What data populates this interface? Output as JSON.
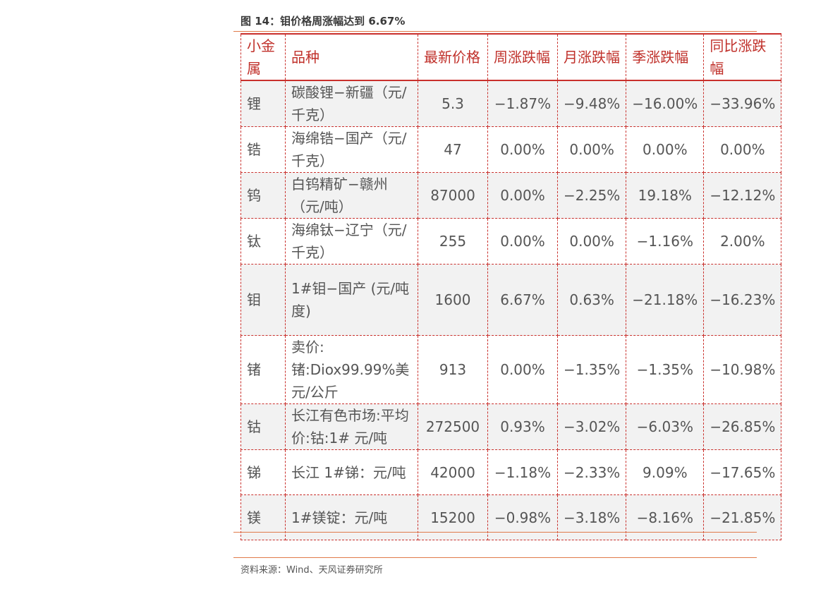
{
  "title": "图 14：钼价格周涨幅达到 6.67%",
  "headers": [
    "小金属",
    "品种",
    "最新价格",
    "周涨跌幅",
    "月涨跌幅",
    "季涨跌幅",
    "同比涨跌幅"
  ],
  "rows": [
    {
      "metal": "锂",
      "product": "碳酸锂−新疆（元/千克）",
      "price": "5.3",
      "week": "−1.87%",
      "month": "−9.48%",
      "quarter": "−16.00%",
      "yoy": "−33.96%"
    },
    {
      "metal": "锆",
      "product": "海绵锆−国产（元/千克）",
      "price": "47",
      "week": "0.00%",
      "month": "0.00%",
      "quarter": "0.00%",
      "yoy": "0.00%"
    },
    {
      "metal": "钨",
      "product": "白钨精矿−赣州（元/吨）",
      "price": "87000",
      "week": "0.00%",
      "month": "−2.25%",
      "quarter": "19.18%",
      "yoy": "−12.12%"
    },
    {
      "metal": "钛",
      "product": "海绵钛−辽宁（元/千克）",
      "price": "255",
      "week": "0.00%",
      "month": "0.00%",
      "quarter": "−1.16%",
      "yoy": "2.00%"
    },
    {
      "metal": "钼",
      "product": "1#钼−国产 (元/吨度)",
      "price": "1600",
      "week": "6.67%",
      "month": "0.63%",
      "quarter": "−21.18%",
      "yoy": "−16.23%"
    },
    {
      "metal": "锗",
      "product": "卖价:锗:Diox99.99%美元/公斤",
      "price": "913",
      "week": "0.00%",
      "month": "−1.35%",
      "quarter": "−1.35%",
      "yoy": "−10.98%"
    },
    {
      "metal": "钴",
      "product": "长江有色市场:平均价:钴:1#  元/吨",
      "price": "272500",
      "week": "0.93%",
      "month": "−3.02%",
      "quarter": "−6.03%",
      "yoy": "−26.85%"
    },
    {
      "metal": "锑",
      "product": "长江 1#锑：元/吨",
      "price": "42000",
      "week": "−1.18%",
      "month": "−2.33%",
      "quarter": "9.09%",
      "yoy": "−17.65%"
    },
    {
      "metal": "镁",
      "product": "1#镁锭：元/吨",
      "price": "15200",
      "week": "−0.98%",
      "month": "−3.18%",
      "quarter": "−8.16%",
      "yoy": "−21.85%"
    }
  ],
  "source": "资料来源：Wind、天风证券研究所"
}
